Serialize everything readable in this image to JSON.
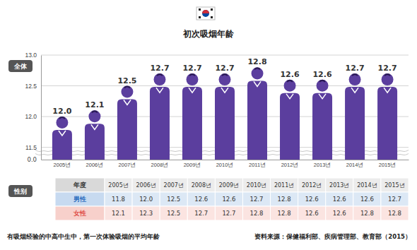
{
  "chart_data": {
    "type": "bar",
    "title": "初次吸烟年龄",
    "y_label": "全体",
    "categories": [
      "2005년",
      "2006년",
      "2007년",
      "2008년",
      "2009년",
      "2010년",
      "2011년",
      "2012년",
      "2013년",
      "2014년",
      "2015년"
    ],
    "values": [
      12.0,
      12.1,
      12.5,
      12.7,
      12.7,
      12.7,
      12.8,
      12.6,
      12.6,
      12.7,
      12.7
    ],
    "value_labels": [
      "12.0",
      "12.1",
      "12.5",
      "12.7",
      "12.7",
      "12.7",
      "12.8",
      "12.6",
      "12.6",
      "12.7",
      "12.7"
    ],
    "color": "#5b3e9e",
    "ylim": [
      11.3,
      13.0
    ],
    "yticks": [
      {
        "value": 11.5,
        "label": "11.5"
      },
      {
        "value": 12,
        "label": "12.0"
      },
      {
        "value": 12.5,
        "label": "12.5"
      },
      {
        "value": 13,
        "label": "13.0"
      }
    ],
    "annotations": [
      "0.0"
    ],
    "grid": true,
    "data_labels": true
  },
  "table": {
    "title": "性别",
    "header": "年度",
    "rows": [
      {
        "name": "男性",
        "values": [
          "11.8",
          "12.0",
          "12.5",
          "12.6",
          "12.6",
          "12.7",
          "12.8",
          "12.6",
          "12.6",
          "12.6",
          "12.7"
        ]
      },
      {
        "name": "女性",
        "values": [
          "12.1",
          "12.3",
          "12.5",
          "12.7",
          "12.7",
          "12.8",
          "12.8",
          "12.6",
          "12.6",
          "12.8",
          "12.8"
        ]
      }
    ]
  },
  "footer": {
    "note": "有吸烟经验的中高中生中，第一次体验吸烟的平均年龄",
    "source": "资料来源：保健福利部、疾病管理部、教育部（2015）"
  }
}
